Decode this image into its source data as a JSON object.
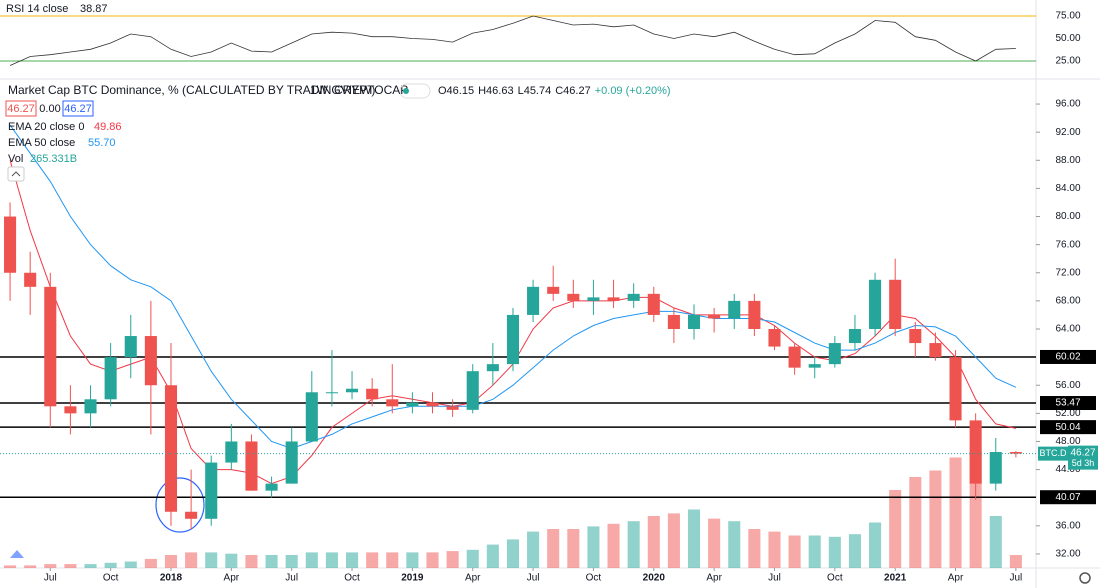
{
  "chart_data": {
    "type": "candlestick",
    "title": "Market Cap BTC Dominance, % (CALCULATED BY TRADINGVIEW)",
    "interval": "1W",
    "exchange": "CRYPTOCAP",
    "quote_labels": [
      "O46.15",
      "H46.63",
      "L45.74",
      "C46.27",
      "+0.09 (+0.20%)"
    ],
    "buttons": [
      "46.27",
      "0.00",
      "46.27"
    ],
    "up_color": "#26a69a",
    "down_color": "#ef5350",
    "open": [
      80,
      72,
      70,
      53,
      52,
      54,
      60,
      63,
      56,
      38,
      37,
      45,
      48,
      41,
      42,
      48,
      55,
      55,
      55.5,
      54,
      53,
      53.5,
      53,
      52.5,
      58,
      59,
      66,
      70,
      69,
      68,
      68.5,
      68,
      69,
      66,
      64,
      66,
      65.5,
      68,
      64,
      61.5,
      58.5,
      59,
      62,
      64,
      71,
      64,
      62,
      60,
      51,
      42,
      46.5
    ],
    "high": [
      82,
      75,
      72,
      56,
      56,
      62,
      66,
      68,
      62,
      44,
      46,
      50.5,
      49,
      43,
      50,
      58,
      61,
      58,
      57,
      59,
      55,
      55,
      54,
      59,
      62,
      67,
      71,
      73,
      71,
      71,
      71,
      70.5,
      70,
      67,
      67.5,
      67,
      69,
      69,
      64.5,
      62,
      60,
      63,
      66,
      72,
      74,
      65,
      63.5,
      61,
      52,
      48.5,
      46.63
    ],
    "low": [
      68,
      66,
      50,
      49,
      50,
      53,
      57,
      49,
      36,
      35.5,
      36,
      44,
      41,
      40,
      42,
      48,
      53,
      54,
      53,
      52,
      52,
      52,
      51.5,
      52,
      56,
      58,
      65,
      68,
      67,
      66,
      67,
      67,
      65,
      62,
      62.5,
      63.5,
      64,
      63,
      61,
      57.5,
      57,
      58.5,
      61,
      63,
      63,
      60,
      59.5,
      50,
      39.7,
      41,
      45.74
    ],
    "close": [
      72,
      70,
      53,
      52,
      54,
      60,
      63,
      56,
      38,
      37,
      45,
      48,
      41,
      42,
      48,
      55,
      55,
      55.5,
      54,
      53,
      53.5,
      53,
      52.5,
      58,
      59,
      66,
      70,
      69,
      68,
      68.5,
      68,
      69,
      66,
      64,
      66,
      65.5,
      68,
      64,
      61.5,
      58.5,
      59,
      62,
      64,
      71,
      64,
      62,
      60,
      51,
      42,
      46.5,
      46.27
    ],
    "ylim": [
      30,
      98
    ],
    "yticks": [
      {
        "value": 96,
        "label": "96.00"
      },
      {
        "value": 92,
        "label": "92.00"
      },
      {
        "value": 88,
        "label": "88.00"
      },
      {
        "value": 84,
        "label": "84.00"
      },
      {
        "value": 80,
        "label": "80.00"
      },
      {
        "value": 76,
        "label": "76.00"
      },
      {
        "value": 72,
        "label": "72.00"
      },
      {
        "value": 68,
        "label": "68.00"
      },
      {
        "value": 64,
        "label": "64.00"
      },
      {
        "value": 56,
        "label": "56.00"
      },
      {
        "value": 52,
        "label": "52.00"
      },
      {
        "value": 48,
        "label": "48.00"
      },
      {
        "value": 44,
        "label": "44.00"
      },
      {
        "value": 36,
        "label": "36.00"
      },
      {
        "value": 32,
        "label": "32.00"
      }
    ],
    "xlim": [
      -0.5,
      51
    ],
    "xticks": [
      {
        "value": 2,
        "label": "Jul"
      },
      {
        "value": 5,
        "label": "Oct"
      },
      {
        "value": 8,
        "label": "2018"
      },
      {
        "value": 11,
        "label": "Apr"
      },
      {
        "value": 14,
        "label": "Jul"
      },
      {
        "value": 17,
        "label": "Oct"
      },
      {
        "value": 20,
        "label": "2019"
      },
      {
        "value": 23,
        "label": "Apr"
      },
      {
        "value": 26,
        "label": "Jul"
      },
      {
        "value": 29,
        "label": "Oct"
      },
      {
        "value": 32,
        "label": "2020"
      },
      {
        "value": 35,
        "label": "Apr"
      },
      {
        "value": 38,
        "label": "Jul"
      },
      {
        "value": 41,
        "label": "Oct"
      },
      {
        "value": 44,
        "label": "2021"
      },
      {
        "value": 47,
        "label": "Apr"
      },
      {
        "value": 50,
        "label": "Jul"
      }
    ],
    "levels": [
      60.02,
      53.47,
      50.04,
      40.07
    ],
    "last_price": {
      "symbol": "BTC.D",
      "value": 46.27,
      "countdown": "5d 3h"
    },
    "series": [
      {
        "name": "EMA 20 close 0",
        "value_label": "49.86",
        "color": "#f23645",
        "values": [
          88,
          78,
          70,
          63,
          59,
          58,
          59,
          60,
          55,
          47,
          44,
          44,
          43.5,
          42,
          43,
          46,
          50,
          52,
          54,
          54.5,
          54,
          53.5,
          53,
          53.5,
          56,
          59,
          64,
          67,
          68,
          68,
          68,
          68.5,
          68.5,
          67,
          66,
          66,
          66,
          66,
          64.5,
          62,
          60,
          59.5,
          60.5,
          63,
          66,
          65.5,
          63,
          60,
          54,
          50.5,
          49.86
        ]
      },
      {
        "name": "EMA 50 close",
        "value_label": "55.70",
        "color": "#2196f3",
        "values": [
          93,
          89,
          85,
          80,
          76,
          73,
          71,
          70,
          68,
          63,
          58,
          54,
          51,
          48,
          47,
          48,
          49,
          50.5,
          51.5,
          52.5,
          53,
          53,
          53,
          53,
          54,
          56,
          58.5,
          61,
          63,
          64.5,
          65.5,
          66,
          66.5,
          66.5,
          66,
          65.5,
          65.5,
          65.5,
          65,
          63.5,
          62,
          61,
          61,
          62,
          63.5,
          64.5,
          64.3,
          63,
          60,
          57,
          55.7
        ]
      }
    ],
    "volume": {
      "name": "Vol",
      "value_label": "265.331B",
      "vlim": [
        0,
        100
      ],
      "values": [
        2,
        2,
        3,
        3,
        3,
        4,
        5,
        7,
        10,
        12,
        12,
        11,
        10,
        10,
        10,
        12,
        12,
        12,
        12,
        12,
        12,
        12,
        13,
        14,
        18,
        22,
        28,
        30,
        30,
        32,
        34,
        36,
        40,
        42,
        45,
        38,
        36,
        30,
        28,
        25,
        25,
        24,
        26,
        35,
        60,
        70,
        75,
        85,
        90,
        40,
        10
      ]
    },
    "rsi": {
      "name": "RSI 14 close",
      "value_label": "38.87",
      "color": "#333333",
      "ylim": [
        15,
        80
      ],
      "yticks": [
        {
          "value": 75,
          "label": "75.00"
        },
        {
          "value": 50,
          "label": "50.00"
        },
        {
          "value": 25,
          "label": "25.00"
        }
      ],
      "bands": [
        {
          "value": 75,
          "color": "#f5b400"
        },
        {
          "value": 25,
          "color": "#4caf50"
        }
      ],
      "values": [
        20,
        30,
        32,
        35,
        38,
        45,
        55,
        52,
        38,
        30,
        35,
        45,
        36,
        35,
        45,
        55,
        57,
        56,
        52,
        52,
        50,
        49,
        46,
        56,
        60,
        67,
        75,
        70,
        65,
        66,
        63,
        65,
        55,
        50,
        55,
        52,
        57,
        47,
        38,
        32,
        33,
        45,
        55,
        70,
        68,
        52,
        48,
        35,
        25,
        38,
        38.87
      ]
    }
  }
}
